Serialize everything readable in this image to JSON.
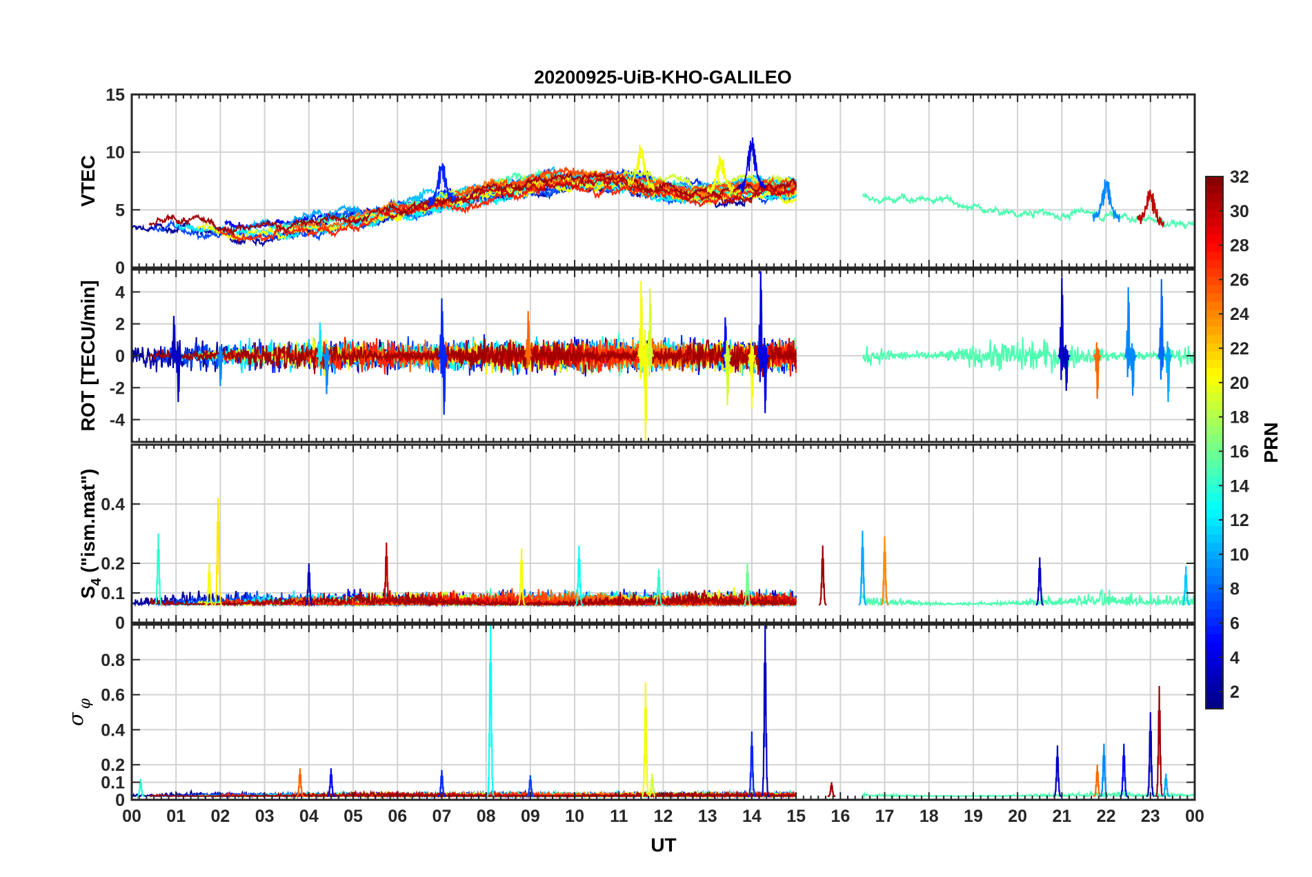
{
  "chart_data": {
    "title": "20200925-UiB-KHO-GALILEO",
    "type": "line",
    "x_axis": {
      "label": "UT",
      "ticks": [
        "00",
        "01",
        "02",
        "03",
        "04",
        "05",
        "06",
        "07",
        "08",
        "09",
        "10",
        "11",
        "12",
        "13",
        "14",
        "15",
        "16",
        "17",
        "18",
        "19",
        "20",
        "21",
        "22",
        "23",
        "00"
      ],
      "range": [
        0,
        24
      ],
      "grid": true
    },
    "panels": [
      {
        "id": "vtec",
        "ylabel": "VTEC",
        "ylim": [
          0,
          15
        ],
        "yticks": [
          "0",
          "5",
          "10",
          "15"
        ],
        "ytick_values": [
          0,
          5,
          10,
          15
        ],
        "grid": true,
        "trend": [
          [
            0,
            3.8
          ],
          [
            1,
            3.9
          ],
          [
            2,
            3.6
          ],
          [
            3,
            3.3
          ],
          [
            4,
            3.8
          ],
          [
            5,
            4.4
          ],
          [
            6,
            5.0
          ],
          [
            7,
            5.8
          ],
          [
            8,
            6.6
          ],
          [
            9,
            7.3
          ],
          [
            10,
            7.7
          ],
          [
            11,
            7.6
          ],
          [
            12,
            6.8
          ],
          [
            13,
            6.6
          ],
          [
            14,
            7.0
          ],
          [
            15,
            7.0
          ],
          [
            16,
            6.3
          ],
          [
            17,
            6.1
          ],
          [
            18,
            5.6
          ],
          [
            19,
            4.9
          ],
          [
            20,
            4.4
          ],
          [
            21,
            4.3
          ],
          [
            22,
            4.4
          ],
          [
            23,
            4.1
          ],
          [
            24,
            3.3
          ]
        ],
        "noise": 0.45,
        "bursts": [
          {
            "x": 7.0,
            "amp": 3.5,
            "prn": 6
          },
          {
            "x": 11.5,
            "amp": 3.5,
            "prn": 20
          },
          {
            "x": 13.3,
            "amp": 3.0,
            "prn": 20
          },
          {
            "x": 14.0,
            "amp": 4.5,
            "prn": 4
          },
          {
            "x": 22.0,
            "amp": 3.5,
            "prn": 9
          },
          {
            "x": 23.0,
            "amp": 3.0,
            "prn": 30
          }
        ]
      },
      {
        "id": "rot",
        "ylabel": "ROT [TECU/min]",
        "ylim": [
          -5.4,
          5.4
        ],
        "yticks": [
          "-4",
          "-2",
          "0",
          "2",
          "4"
        ],
        "ytick_values": [
          -4,
          -2,
          0,
          2,
          4
        ],
        "grid": true,
        "noise": 0.45,
        "spikes": [
          {
            "x": 0.95,
            "amp": 2.5,
            "prn": 3
          },
          {
            "x": 1.05,
            "amp": -2.9,
            "prn": 3
          },
          {
            "x": 2.0,
            "amp": -1.9,
            "prn": 9
          },
          {
            "x": 4.25,
            "amp": 2.1,
            "prn": 12
          },
          {
            "x": 4.4,
            "amp": -2.4,
            "prn": 9
          },
          {
            "x": 7.0,
            "amp": 3.6,
            "prn": 6
          },
          {
            "x": 7.05,
            "amp": -3.7,
            "prn": 6
          },
          {
            "x": 8.95,
            "amp": 2.8,
            "prn": 25
          },
          {
            "x": 11.5,
            "amp": 4.7,
            "prn": 20
          },
          {
            "x": 11.6,
            "amp": -5.3,
            "prn": 20
          },
          {
            "x": 11.7,
            "amp": 4.2,
            "prn": 19
          },
          {
            "x": 13.4,
            "amp": 2.4,
            "prn": 5
          },
          {
            "x": 13.45,
            "amp": -3.1,
            "prn": 19
          },
          {
            "x": 14.2,
            "amp": 5.3,
            "prn": 4
          },
          {
            "x": 14.3,
            "amp": -3.6,
            "prn": 4
          },
          {
            "x": 14.0,
            "amp": -3.3,
            "prn": 20
          },
          {
            "x": 21.0,
            "amp": 4.9,
            "prn": 3
          },
          {
            "x": 21.1,
            "amp": -2.2,
            "prn": 3
          },
          {
            "x": 21.8,
            "amp": -2.7,
            "prn": 25
          },
          {
            "x": 22.5,
            "amp": 4.3,
            "prn": 9
          },
          {
            "x": 22.6,
            "amp": -2.5,
            "prn": 9
          },
          {
            "x": 23.25,
            "amp": 4.8,
            "prn": 8
          },
          {
            "x": 23.4,
            "amp": -2.9,
            "prn": 10
          }
        ]
      },
      {
        "id": "s4",
        "ylabel": "S4 (\"ism.mat\")",
        "ylabel_main": "S",
        "ylabel_sub": "4",
        "ylabel_rest": " (\"ism.mat\")",
        "ylim": [
          0,
          0.6
        ],
        "yticks": [
          "0",
          "0.1",
          "0.2",
          "0.4"
        ],
        "ytick_values": [
          0,
          0.1,
          0.2,
          0.4
        ],
        "grid": true,
        "baseline": 0.06,
        "noise": 0.025,
        "spikes": [
          {
            "x": 0.6,
            "amp": 0.3,
            "prn": 14
          },
          {
            "x": 1.95,
            "amp": 0.42,
            "prn": 21
          },
          {
            "x": 1.75,
            "amp": 0.2,
            "prn": 20
          },
          {
            "x": 4.0,
            "amp": 0.2,
            "prn": 3
          },
          {
            "x": 5.75,
            "amp": 0.27,
            "prn": 30
          },
          {
            "x": 8.8,
            "amp": 0.25,
            "prn": 20
          },
          {
            "x": 10.1,
            "amp": 0.26,
            "prn": 13
          },
          {
            "x": 11.9,
            "amp": 0.18,
            "prn": 14
          },
          {
            "x": 13.9,
            "amp": 0.2,
            "prn": 16
          },
          {
            "x": 15.6,
            "amp": 0.26,
            "prn": 31
          },
          {
            "x": 16.5,
            "amp": 0.31,
            "prn": 10
          },
          {
            "x": 17.0,
            "amp": 0.29,
            "prn": 24
          },
          {
            "x": 20.5,
            "amp": 0.22,
            "prn": 3
          },
          {
            "x": 23.8,
            "amp": 0.19,
            "prn": 11
          }
        ]
      },
      {
        "id": "sigma",
        "ylabel": "σφ",
        "ylim": [
          0,
          1
        ],
        "yticks": [
          "0",
          "0.1",
          "0.2",
          "0.4",
          "0.6",
          "0.8"
        ],
        "ytick_values": [
          0,
          0.1,
          0.2,
          0.4,
          0.6,
          0.8
        ],
        "grid": true,
        "baseline": 0.02,
        "noise": 0.012,
        "spikes": [
          {
            "x": 0.2,
            "amp": 0.12,
            "prn": 14
          },
          {
            "x": 3.8,
            "amp": 0.18,
            "prn": 25
          },
          {
            "x": 4.5,
            "amp": 0.18,
            "prn": 5
          },
          {
            "x": 7.0,
            "amp": 0.17,
            "prn": 6
          },
          {
            "x": 8.1,
            "amp": 1.0,
            "prn": 13
          },
          {
            "x": 9.0,
            "amp": 0.14,
            "prn": 7
          },
          {
            "x": 11.6,
            "amp": 0.67,
            "prn": 20
          },
          {
            "x": 11.75,
            "amp": 0.15,
            "prn": 19
          },
          {
            "x": 14.0,
            "amp": 0.39,
            "prn": 6
          },
          {
            "x": 14.3,
            "amp": 1.0,
            "prn": 3
          },
          {
            "x": 15.8,
            "amp": 0.1,
            "prn": 31
          },
          {
            "x": 20.9,
            "amp": 0.31,
            "prn": 3
          },
          {
            "x": 21.8,
            "amp": 0.2,
            "prn": 25
          },
          {
            "x": 21.95,
            "amp": 0.32,
            "prn": 9
          },
          {
            "x": 22.4,
            "amp": 0.32,
            "prn": 5
          },
          {
            "x": 23.0,
            "amp": 0.5,
            "prn": 3
          },
          {
            "x": 23.2,
            "amp": 0.65,
            "prn": 31
          },
          {
            "x": 23.35,
            "amp": 0.15,
            "prn": 10
          }
        ]
      }
    ],
    "prns": [
      2,
      3,
      4,
      5,
      6,
      7,
      8,
      9,
      10,
      11,
      12,
      13,
      14,
      15,
      19,
      20,
      21,
      24,
      25,
      26,
      27,
      30,
      31
    ],
    "colorbar": {
      "label": "PRN",
      "range": [
        1,
        32
      ],
      "ticks": [
        "2",
        "4",
        "6",
        "8",
        "10",
        "12",
        "14",
        "16",
        "18",
        "20",
        "22",
        "24",
        "26",
        "28",
        "30",
        "32"
      ],
      "tick_values": [
        2,
        4,
        6,
        8,
        10,
        12,
        14,
        16,
        18,
        20,
        22,
        24,
        26,
        28,
        30,
        32
      ],
      "colormap": "jet"
    }
  }
}
